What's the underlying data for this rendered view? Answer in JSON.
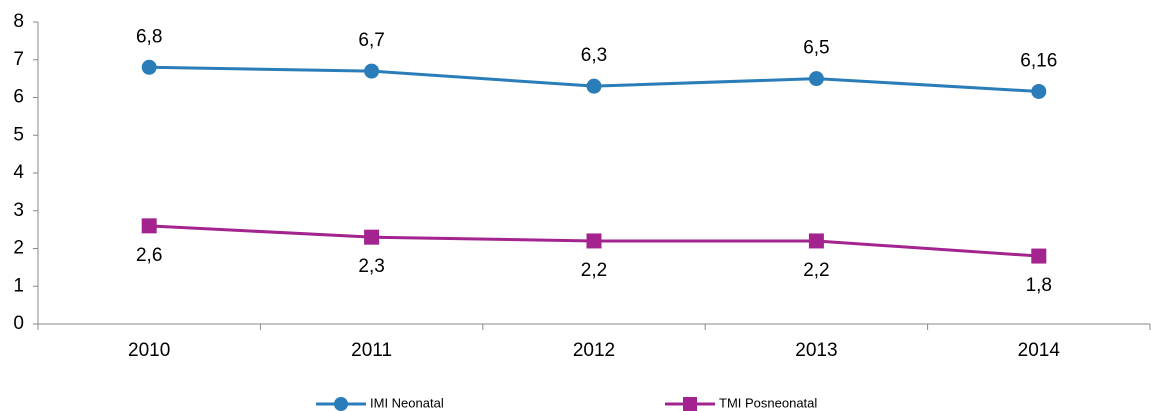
{
  "chart_data": {
    "type": "line",
    "categories": [
      "2010",
      "2011",
      "2012",
      "2013",
      "2014"
    ],
    "series": [
      {
        "name": "IMI Neonatal",
        "color": "#2a7db8",
        "marker": "circle",
        "values": [
          6.8,
          6.7,
          6.3,
          6.5,
          6.16
        ],
        "value_labels": [
          "6,8",
          "6,7",
          "6,3",
          "6,5",
          "6,16"
        ],
        "label_position": "above"
      },
      {
        "name": "TMI Posneonatal",
        "color": "#a3248f",
        "marker": "square",
        "values": [
          2.6,
          2.3,
          2.2,
          2.2,
          1.8
        ],
        "value_labels": [
          "2,6",
          "2,3",
          "2,2",
          "2,2",
          "1,8"
        ],
        "label_position": "below"
      }
    ],
    "ylim": [
      0,
      8
    ],
    "yticks": [
      0,
      1,
      2,
      3,
      4,
      5,
      6,
      7,
      8
    ],
    "grid": false,
    "legend": "bottom"
  }
}
